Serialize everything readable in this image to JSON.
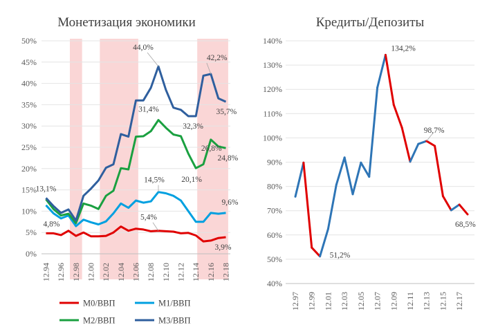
{
  "chart_data": [
    {
      "type": "line",
      "title": "Монетизация экономики",
      "x_ticks": [
        "12.94",
        "12.96",
        "12.98",
        "12.00",
        "12.02",
        "12.04",
        "12.06",
        "12.08",
        "12.10",
        "12.12",
        "12.14",
        "12.16",
        "12.18"
      ],
      "y_ticks": [
        "0%",
        "5%",
        "10%",
        "15%",
        "20%",
        "25%",
        "30%",
        "35%",
        "40%",
        "45%",
        "50%"
      ],
      "ylim": [
        0,
        50
      ],
      "x_count": 25,
      "shaded_ranges": [
        [
          3.5,
          4.5
        ],
        [
          7.5,
          12
        ],
        [
          20.5,
          24
        ]
      ],
      "shade_color": "#f8c8c8",
      "series": [
        {
          "name": "M0/ВВП",
          "color": "#e00000",
          "values": [
            4.8,
            4.8,
            4.4,
            5.4,
            4.2,
            5.0,
            4.1,
            4.1,
            4.2,
            5.0,
            6.4,
            5.4,
            5.9,
            5.7,
            5.3,
            5.4,
            5.3,
            5.2,
            4.8,
            4.9,
            4.3,
            2.9,
            3.1,
            3.7,
            3.9
          ]
        },
        {
          "name": "M1/ВВП",
          "color": "#00a0e0",
          "values": [
            11.4,
            9.5,
            8.3,
            9.0,
            6.5,
            8.0,
            7.4,
            6.9,
            7.6,
            9.5,
            11.8,
            10.8,
            12.5,
            12.0,
            12.3,
            14.5,
            14.2,
            13.6,
            12.5,
            10.0,
            7.5,
            7.5,
            9.6,
            9.4,
            9.6
          ]
        },
        {
          "name": "M2/ВВП",
          "color": "#1aa040",
          "values": [
            12.8,
            10.5,
            9.0,
            9.4,
            7.2,
            11.8,
            11.3,
            10.5,
            13.6,
            14.8,
            20.1,
            19.8,
            27.5,
            27.6,
            28.8,
            31.4,
            29.6,
            28.0,
            27.6,
            23.5,
            20.1,
            21.0,
            26.8,
            25.2,
            24.8
          ]
        },
        {
          "name": "M3/ВВП",
          "color": "#2f5f9e",
          "values": [
            13.1,
            11.2,
            9.6,
            10.4,
            7.8,
            13.6,
            15.3,
            17.2,
            20.2,
            21.0,
            28.1,
            27.5,
            36.0,
            36.0,
            39.0,
            44.0,
            38.5,
            34.3,
            33.8,
            32.3,
            32.3,
            41.8,
            42.2,
            36.5,
            35.7
          ]
        }
      ],
      "data_labels": [
        {
          "series": "M3/ВВП",
          "index": 0,
          "text": "13,1%"
        },
        {
          "series": "M0/ВВП",
          "index": 0,
          "text": "4,8%"
        },
        {
          "series": "M3/ВВП",
          "index": 15,
          "text": "44,0%"
        },
        {
          "series": "M2/ВВП",
          "index": 15,
          "text": "31,4%"
        },
        {
          "series": "M1/ВВП",
          "index": 15,
          "text": "14,5%"
        },
        {
          "series": "M0/ВВП",
          "index": 15,
          "text": "5,4%"
        },
        {
          "series": "M3/ВВП",
          "index": 20,
          "text": "32,3%"
        },
        {
          "series": "M2/ВВП",
          "index": 20,
          "text": "20,1%"
        },
        {
          "series": "M3/ВВП",
          "index": 22,
          "text": "42,2%"
        },
        {
          "series": "M2/ВВП",
          "index": 22,
          "text": "26,8%"
        },
        {
          "series": "M3/ВВП",
          "index": 24,
          "text": "35,7%"
        },
        {
          "series": "M2/ВВП",
          "index": 24,
          "text": "24,8%"
        },
        {
          "series": "M1/ВВП",
          "index": 24,
          "text": "9,6%"
        },
        {
          "series": "M0/ВВП",
          "index": 24,
          "text": "3,9%"
        }
      ],
      "legend": "bottom"
    },
    {
      "type": "line",
      "title": "Кредиты/Депозиты",
      "x_ticks": [
        "12.97",
        "12.99",
        "12.01",
        "12.03",
        "12.05",
        "12.07",
        "12.09",
        "12.11",
        "12.13",
        "12.15",
        "12.17"
      ],
      "y_ticks": [
        "40%",
        "50%",
        "60%",
        "70%",
        "80%",
        "90%",
        "100%",
        "110%",
        "120%",
        "130%",
        "140%"
      ],
      "ylim": [
        40,
        140
      ],
      "x_count": 22,
      "values": [
        75.8,
        89.8,
        54.8,
        51.2,
        62.5,
        80.7,
        91.9,
        76.8,
        89.8,
        84.0,
        120.7,
        134.2,
        113.6,
        104.2,
        90.2,
        97.5,
        98.7,
        96.7,
        76.0,
        70.2,
        72.5,
        68.5
      ],
      "segment_colors": [
        "#2e75b6",
        "#e00000",
        "#e00000",
        "#2e75b6",
        "#2e75b6",
        "#2e75b6",
        "#2e75b6",
        "#2e75b6",
        "#2e75b6",
        "#2e75b6",
        "#2e75b6",
        "#e00000",
        "#e00000",
        "#e00000",
        "#2e75b6",
        "#2e75b6",
        "#e00000",
        "#e00000",
        "#e00000",
        "#2e75b6",
        "#e00000"
      ],
      "data_labels": [
        {
          "index": 3,
          "text": "51,2%"
        },
        {
          "index": 11,
          "text": "134,2%"
        },
        {
          "index": 16,
          "text": "98,7%"
        },
        {
          "index": 21,
          "text": "68,5%"
        }
      ]
    }
  ]
}
